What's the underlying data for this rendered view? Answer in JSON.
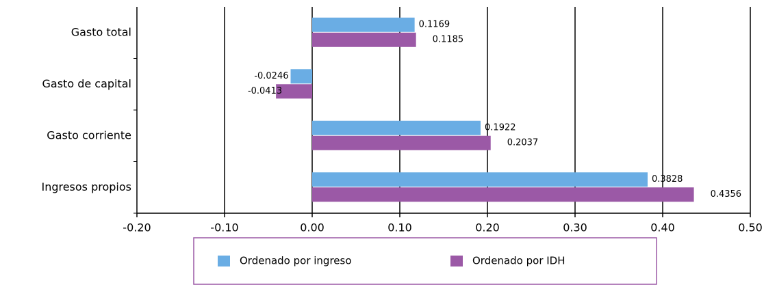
{
  "chart_data": {
    "type": "barh",
    "categories": [
      "Gasto total",
      "Gasto de capital",
      "Gasto corriente",
      "Ingresos propios"
    ],
    "series": [
      {
        "name": "Ordenado por ingreso",
        "color": "#6aade4",
        "values": [
          0.1169,
          -0.0246,
          0.1922,
          0.3828
        ]
      },
      {
        "name": "Ordenado por IDH",
        "color": "#9b59a6",
        "values": [
          0.1185,
          -0.0413,
          0.2037,
          0.4356
        ]
      }
    ],
    "xlim": [
      -0.2,
      0.5
    ],
    "xticks": [
      {
        "value": -0.2,
        "label": "-0.20"
      },
      {
        "value": -0.1,
        "label": "-0.10"
      },
      {
        "value": 0,
        "label": "0.00"
      },
      {
        "value": 0.1,
        "label": "0.10"
      },
      {
        "value": 0.2,
        "label": "0.20"
      },
      {
        "value": 0.3,
        "label": "0.30"
      },
      {
        "value": 0.4,
        "label": "0.40"
      },
      {
        "value": 0.5,
        "label": "0.50"
      }
    ],
    "grid": true,
    "legend": "bottom"
  }
}
